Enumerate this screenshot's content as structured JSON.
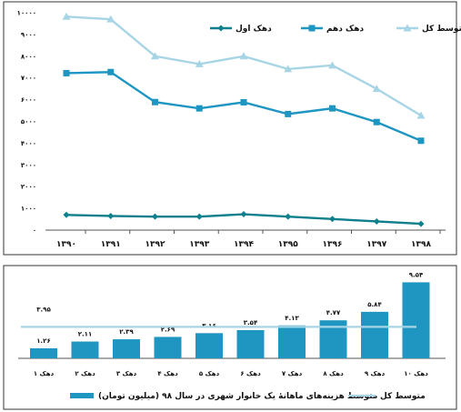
{
  "colors": {
    "first_decile": "#0e7f8c",
    "tenth_decile": "#1f96c2",
    "total_avg": "#a8d5e5",
    "bar": "#1f96c2",
    "avg_line": "#a8d5e5"
  },
  "chart_data": [
    {
      "type": "line",
      "x": [
        "۱۳۹۰",
        "۱۳۹۱",
        "۱۳۹۲",
        "۱۳۹۳",
        "۱۳۹۴",
        "۱۳۹۵",
        "۱۳۹۶",
        "۱۳۹۷",
        "۱۳۹۸"
      ],
      "ylim": [
        0,
        10000
      ],
      "yticks": [
        0,
        1000,
        2000,
        3000,
        4000,
        5000,
        6000,
        7000,
        8000,
        9000,
        10000
      ],
      "ytick_labels": [
        "۰",
        "۱۰۰۰",
        "۲۰۰۰",
        "۳۰۰۰",
        "۴۰۰۰",
        "۵۰۰۰",
        "۶۰۰۰",
        "۷۰۰۰",
        "۸۰۰۰",
        "۹۰۰۰",
        "۱۰۰۰۰"
      ],
      "grid": false,
      "legend_position": "top-right",
      "series": [
        {
          "name": "دهک اول",
          "marker": "diamond",
          "values": [
            700,
            650,
            620,
            620,
            730,
            620,
            510,
            400,
            290
          ]
        },
        {
          "name": "دهک دهم",
          "marker": "square",
          "values": [
            7220,
            7270,
            5890,
            5600,
            5880,
            5340,
            5600,
            4970,
            4110
          ]
        },
        {
          "name": "متوسط کل",
          "marker": "triangle",
          "values": [
            9820,
            9700,
            8000,
            7640,
            8000,
            7410,
            7580,
            6500,
            5270
          ]
        }
      ]
    },
    {
      "type": "bar",
      "categories": [
        "دهک ۱",
        "دهک ۲",
        "دهک ۳",
        "دهک ۴",
        "دهک ۵",
        "دهک ۶",
        "دهک ۷",
        "دهک ۸",
        "دهک ۹",
        "دهک ۱۰"
      ],
      "values": [
        1.26,
        2.11,
        2.39,
        2.69,
        3.16,
        3.54,
        4.13,
        4.77,
        5.84,
        9.54
      ],
      "value_labels": [
        "۱.۲۶",
        "۲.۱۱",
        "۲.۳۹",
        "۲.۶۹",
        "۳.۱۶",
        "۳.۵۴",
        "۴.۱۳",
        "۴.۷۷",
        "۵.۸۴",
        "۹.۵۴"
      ],
      "average": 3.95,
      "average_label": "۳.۹۵",
      "ylim": [
        0,
        10.5
      ],
      "legend_position": "bottom",
      "legend": {
        "bar_label": "متوسط هزینه‌های ماهانهٔ یک خانوار شهری در سال ۹۸ (میلیون تومان)",
        "line_label": "متوسط کل"
      }
    }
  ]
}
